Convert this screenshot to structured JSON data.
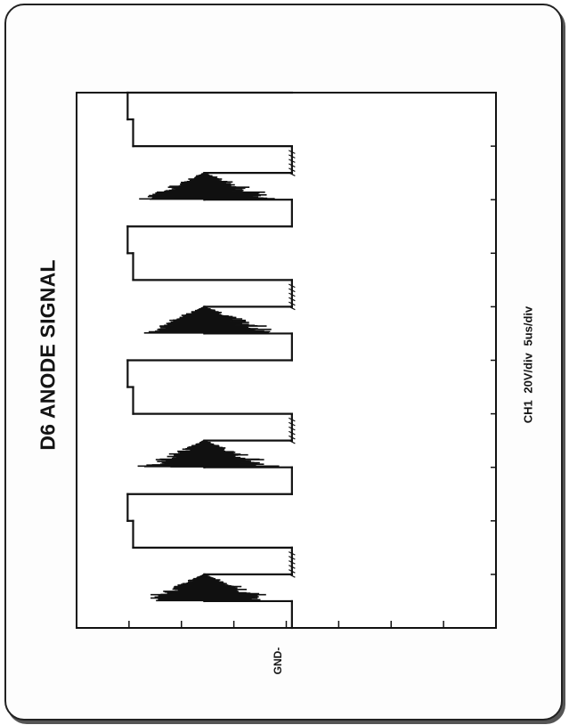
{
  "chart_data": {
    "type": "line",
    "title": "D6 ANODE SIGNAL",
    "settings_label": "CH1  20V/div  5us/div",
    "ground_marker": "GND-",
    "units": {
      "voltage_per_div": "20V/div",
      "time_per_div": "5us/div"
    },
    "grid": false,
    "divisions": {
      "time": 10,
      "voltage": 4
    },
    "series": [
      {
        "x": [
          0,
          0.5,
          1.0,
          1.5,
          2.0,
          2.5,
          3.0,
          3.5,
          4.0,
          4.5,
          5.0,
          5.5,
          6.0,
          6.5,
          7.0,
          7.5,
          8.0,
          8.5,
          9.0,
          9.5,
          10.0
        ],
        "y": [
          3.9,
          2.3,
          3.9,
          1.0,
          0.9,
          3.9,
          2.3,
          3.9,
          1.0,
          0.9,
          3.9,
          2.3,
          3.9,
          1.0,
          0.9,
          3.9,
          2.3,
          3.9,
          1.0,
          0.9,
          3.9
        ]
      }
    ]
  }
}
